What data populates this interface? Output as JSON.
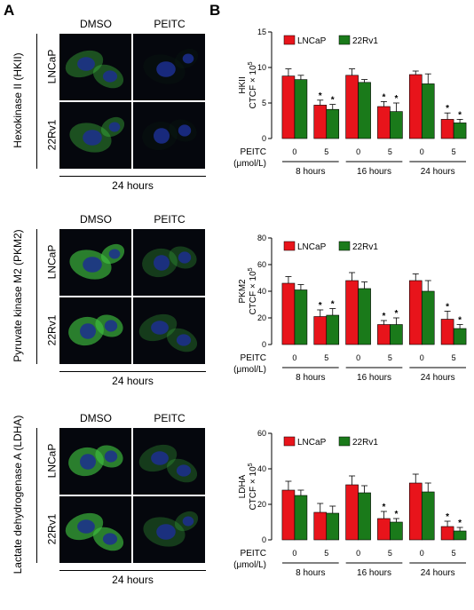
{
  "panel_a": {
    "label": "A",
    "columns": [
      "DMSO",
      "PEITC"
    ],
    "rows": [
      "LNCaP",
      "22Rv1"
    ],
    "time_label": "24 hours",
    "groups": [
      {
        "side_label": "Hexokinase II (HKII)"
      },
      {
        "side_label": "Pyruvate kinase M2 (PKM2)"
      },
      {
        "side_label": "Lactate dehydrogenase A (LDHA)"
      }
    ]
  },
  "panel_b": {
    "label": "B"
  },
  "colors": {
    "lncap": "#e8141b",
    "r22": "#1a7a1a",
    "nucleus": "#1c2f8f",
    "cytoplasm": "#3fbf3f"
  },
  "chart_data": [
    {
      "type": "bar",
      "ylabel_line1": "HKII",
      "ylabel_line2": "CTCF × 10",
      "ylabel_exp": "5",
      "ylim": [
        0,
        15
      ],
      "yticks": [
        0,
        5,
        10,
        15
      ],
      "legend": [
        "LNCaP",
        "22Rv1"
      ],
      "peitc_label": "PEITC",
      "unit_label": "(μmol/L)",
      "doses": [
        "0",
        "5",
        "0",
        "5",
        "0",
        "5"
      ],
      "groups": [
        "8 hours",
        "16 hours",
        "24 hours"
      ],
      "series": [
        {
          "name": "LNCaP",
          "values": [
            8.8,
            4.7,
            8.9,
            4.5,
            9.0,
            2.7
          ],
          "errors": [
            1.0,
            0.7,
            0.9,
            0.7,
            0.5,
            0.9
          ]
        },
        {
          "name": "22Rv1",
          "values": [
            8.3,
            4.1,
            7.9,
            3.8,
            7.7,
            2.2
          ],
          "errors": [
            0.6,
            0.7,
            0.4,
            1.2,
            1.4,
            0.5
          ]
        }
      ],
      "significant": [
        false,
        true,
        false,
        true,
        false,
        true
      ]
    },
    {
      "type": "bar",
      "ylabel_line1": "PKM2",
      "ylabel_line2": "CTCF × 10",
      "ylabel_exp": "5",
      "ylim": [
        0,
        80
      ],
      "yticks": [
        0,
        20,
        40,
        60,
        80
      ],
      "legend": [
        "LNCaP",
        "22Rv1"
      ],
      "peitc_label": "PEITC",
      "unit_label": "(μmol/L)",
      "doses": [
        "0",
        "5",
        "0",
        "5",
        "0",
        "5"
      ],
      "groups": [
        "8 hours",
        "16 hours",
        "24 hours"
      ],
      "series": [
        {
          "name": "LNCaP",
          "values": [
            46,
            21,
            48,
            15,
            48,
            19
          ],
          "errors": [
            5,
            5,
            6,
            3,
            5,
            6
          ]
        },
        {
          "name": "22Rv1",
          "values": [
            41,
            22,
            42,
            15,
            40,
            12
          ],
          "errors": [
            4,
            5,
            5,
            5,
            8,
            3
          ]
        }
      ],
      "significant": [
        false,
        true,
        false,
        true,
        false,
        true
      ]
    },
    {
      "type": "bar",
      "ylabel_line1": "LDHA",
      "ylabel_line2": "CTCF × 10",
      "ylabel_exp": "5",
      "ylim": [
        0,
        60
      ],
      "yticks": [
        0,
        20,
        40,
        60
      ],
      "legend": [
        "LNCaP",
        "22Rv1"
      ],
      "peitc_label": "PEITC",
      "unit_label": "(μmol/L)",
      "doses": [
        "0",
        "5",
        "0",
        "5",
        "0",
        "5"
      ],
      "groups": [
        "8 hours",
        "16 hours",
        "24 hours"
      ],
      "series": [
        {
          "name": "LNCaP",
          "values": [
            28,
            15.5,
            31,
            12,
            32,
            7.5
          ],
          "errors": [
            5,
            5,
            5,
            4,
            5,
            3
          ]
        },
        {
          "name": "22Rv1",
          "values": [
            25,
            15,
            26.5,
            10,
            27,
            5
          ],
          "errors": [
            3,
            4,
            4,
            2,
            5,
            2
          ]
        }
      ],
      "significant": [
        false,
        false,
        false,
        true,
        false,
        true
      ]
    }
  ]
}
